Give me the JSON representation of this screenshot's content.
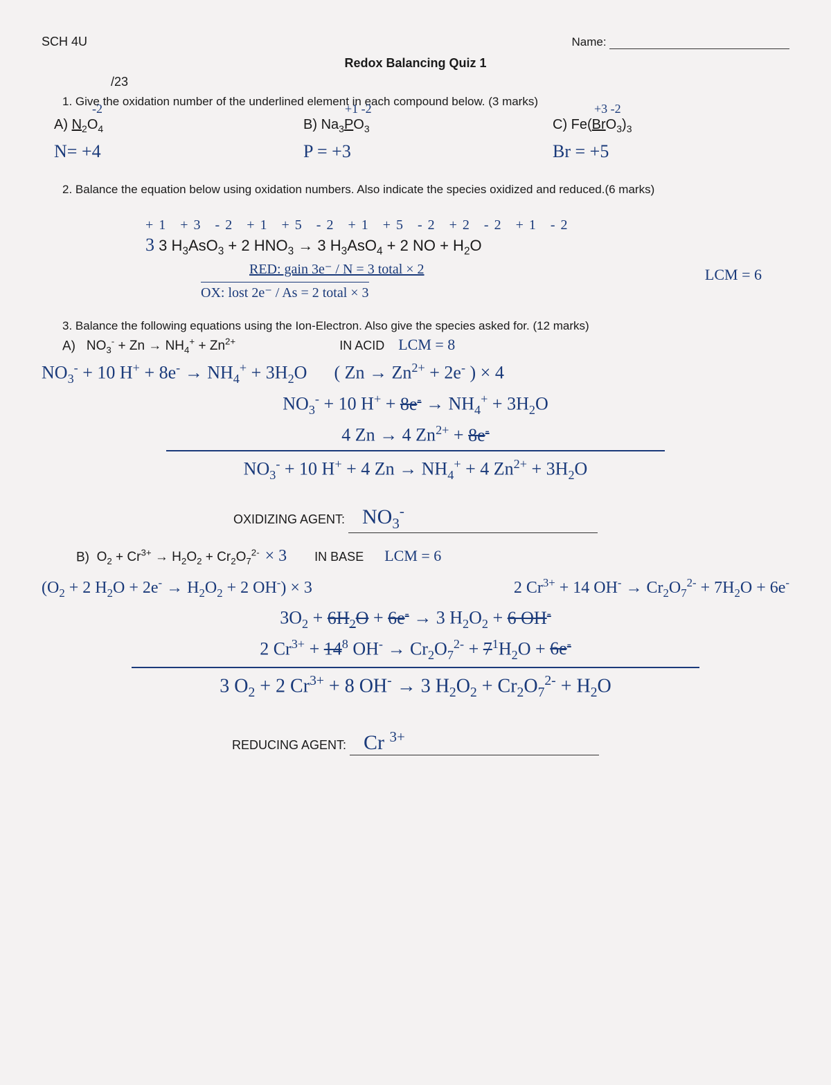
{
  "course_code": "SCH 4U",
  "name_label": "Name:",
  "title": "Redox Balancing Quiz 1",
  "total_marks": "/23",
  "q1": {
    "text": "1.  Give the oxidation number of the underlined element in each compound below. (3 marks)",
    "a": {
      "label": "A)",
      "formula_html": "<span class='u'>N</span><span class='sub'>2</span>O<span class='sub'>4</span>",
      "top_ann": "-2",
      "answer": "N= +4"
    },
    "b": {
      "label": "B)",
      "formula_html": "Na<span class='sub'>3</span><span class='u'>P</span>O<span class='sub'>3</span>",
      "top_ann": "+1   -2",
      "answer": "P = +3"
    },
    "c": {
      "label": "C)",
      "formula_html": "Fe(<span class='u'>Br</span>O<span class='sub'>3</span>)<span class='sub'>3</span>",
      "top_ann": "+3    -2",
      "answer": "Br = +5"
    }
  },
  "q2": {
    "text": "2.  Balance the equation below using oxidation numbers. Also indicate the species oxidized and reduced.(6 marks)",
    "ox_nums": "+1 +3 -2    +1 +5 -2     +1 +5 -2   +2 -2  +1  -2",
    "equation_html": "3  H<span class='sub'>3</span>AsO<span class='sub'>3</span>  +  2 HNO<span class='sub'>3</span>  → 3  H<span class='sub'>3</span>AsO<span class='sub'>4</span> + 2 NO  +  H<span class='sub'>2</span>O",
    "red_line": "RED: gain 3e⁻ / N = 3 total × 2",
    "ox_line": "OX: lost 2e⁻ / As = 2 total × 3",
    "lcm": "LCM = 6"
  },
  "q3": {
    "text": "3.  Balance the following equations using the Ion-Electron. Also give the species asked for. (12 marks)",
    "a": {
      "label": "A)",
      "printed_html": "NO<span class='sub'>3</span><span class='sup'>-</span>   +   Zn   →  NH<span class='sub'>4</span><span class='sup'>+</span>  +  Zn<span class='sup'>2+</span>",
      "acid": "IN ACID",
      "lcm": "LCM = 8",
      "line1_html": "NO<span class='sub'>3</span><span class='sup'>-</span> + 10 H<span class='sup'>+</span> + 8e<span class='sup'>-</span> → NH<span class='sub'>4</span><span class='sup'>+</span> + 3H<span class='sub'>2</span>O &nbsp;&nbsp;&nbsp;&nbsp; ( Zn → Zn<span class='sup'>2+</span> + 2e<span class='sup'>-</span> ) × 4",
      "line2_html": "NO<span class='sub'>3</span><span class='sup'>-</span>  +  10 H<span class='sup'>+</span>  +  <span class='strike'>8e<span class='sup'>-</span></span>  →  NH<span class='sub'>4</span><span class='sup'>+</span>  +  3H<span class='sub'>2</span>O",
      "line3_html": "4 Zn  →  4 Zn<span class='sup'>2+</span>  +  <span class='strike'>8e<span class='sup'>-</span></span>",
      "final_html": "NO<span class='sub'>3</span><span class='sup'>-</span> + 10 H<span class='sup'>+</span> + 4 Zn → NH<span class='sub'>4</span><span class='sup'>+</span> + 4 Zn<span class='sup'>2+</span> + 3H<span class='sub'>2</span>O",
      "oxidizing_label": "OXIDIZING AGENT:",
      "oxidizing_ans_html": "NO<span class='sub'>3</span><span class='sup'>-</span>"
    },
    "b": {
      "label": "B)",
      "printed_html": "O<span class='sub'>2</span> + Cr<span class='sup'>3+</span>  →  H<span class='sub'>2</span>O<span class='sub'>2</span>  +  Cr<span class='sub'>2</span>O<span class='sub'>7</span><span class='sup'>2-</span>",
      "base": "IN BASE",
      "lcm": "LCM = 6",
      "left_half_html": "(O<span class='sub'>2</span> + 2 H<span class='sub'>2</span>O + 2e<span class='sup'>-</span> → H<span class='sub'>2</span>O<span class='sub'>2</span> + 2 OH<span class='sup'>-</span>) × 3",
      "right_half_html": "2 Cr<span class='sup'>3+</span> + 14 OH<span class='sup'>-</span>  → Cr<span class='sub'>2</span>O<span class='sub'>7</span><span class='sup'>2-</span> + 7H<span class='sub'>2</span>O + 6e<span class='sup'>-</span>",
      "line2_html": "3O<span class='sub'>2</span> + <span class='strike'>6H<span class='sub'>2</span>O</span> + <span class='strike'>6e<span class='sup'>-</span></span>  →  3 H<span class='sub'>2</span>O<span class='sub'>2</span> + <span class='strike'>6 OH<span class='sup'>-</span></span>",
      "line3_html": "2 Cr<span class='sup'>3+</span> + <span class='strike'>14</span><span class='sup'>8</span> OH<span class='sup'>-</span> → Cr<span class='sub'>2</span>O<span class='sub'>7</span><span class='sup'>2-</span> + <span class='strike'>7</span><span class='sup'>1</span>H<span class='sub'>2</span>O + <span class='strike'>6e<span class='sup'>-</span></span>",
      "final_html": "3 O<span class='sub'>2</span>  +  2 Cr<span class='sup'>3+</span> + 8 OH<span class='sup'>-</span>  →  3 H<span class='sub'>2</span>O<span class='sub'>2</span>  +  Cr<span class='sub'>2</span>O<span class='sub'>7</span><span class='sup'>2-</span>  +  H<span class='sub'>2</span>O",
      "reducing_label": "REDUCING AGENT:",
      "reducing_ans_html": "Cr <span class='sup'>3+</span>"
    }
  },
  "colors": {
    "ink": "#1a1a1a",
    "pen": "#1a3a7a",
    "bg": "#f4f2f2"
  }
}
